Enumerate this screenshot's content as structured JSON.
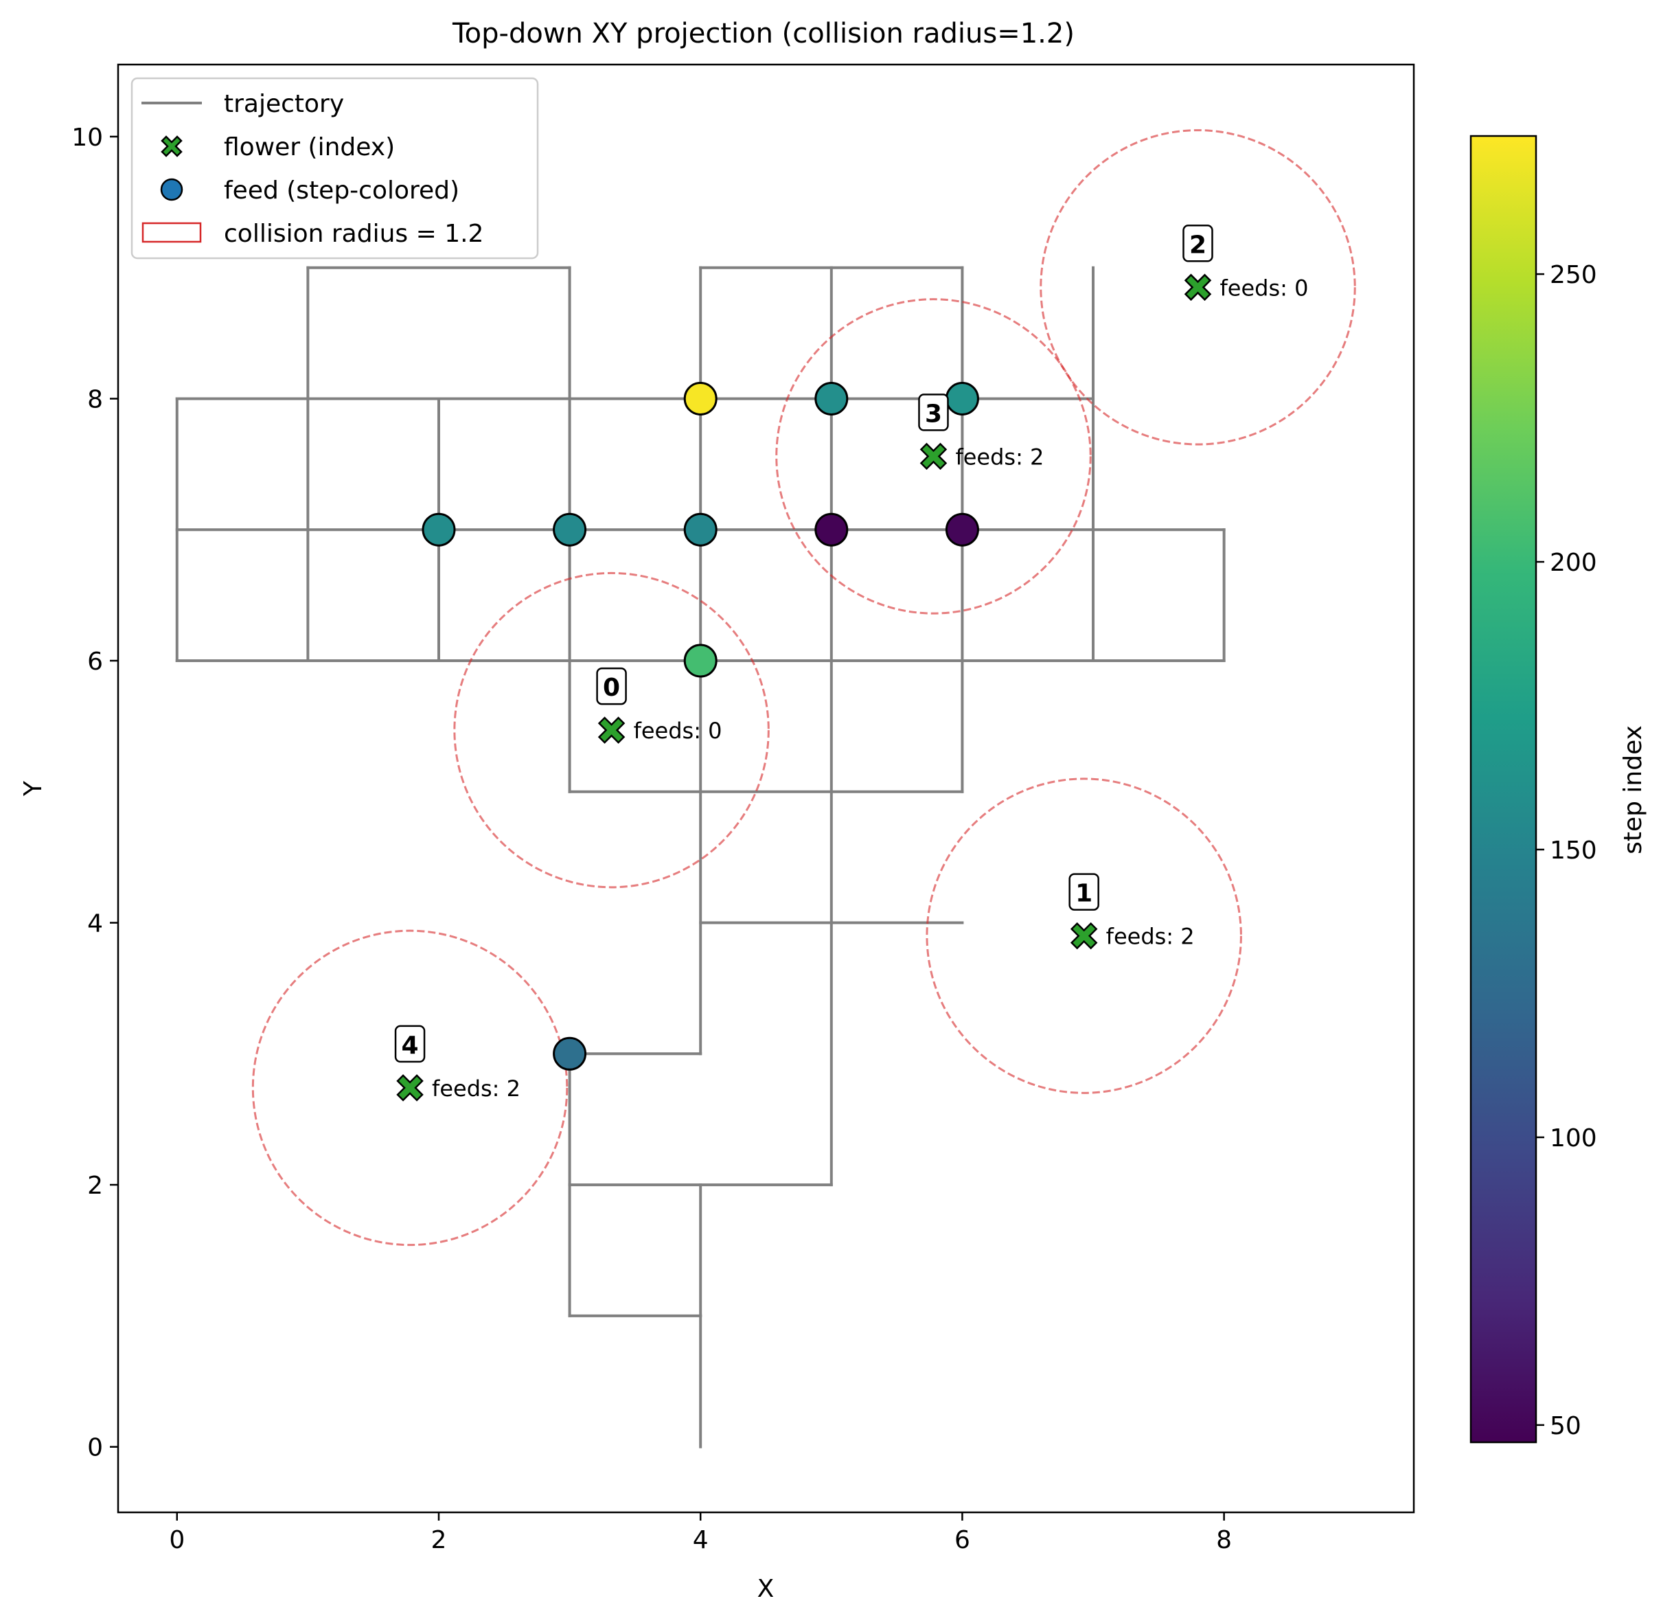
{
  "chart_data": {
    "type": "scatter",
    "title": "Top-down XY projection (collision radius=1.2)",
    "xlabel": "X",
    "ylabel": "Y",
    "xlim": [
      -0.45,
      9.45
    ],
    "ylim": [
      -0.5,
      10.55
    ],
    "x_ticks": [
      0,
      2,
      4,
      6,
      8
    ],
    "y_ticks": [
      0,
      2,
      4,
      6,
      8,
      10
    ],
    "grid": false,
    "legend_position": "top-left",
    "legend": [
      {
        "key": "trajectory",
        "label": "trajectory"
      },
      {
        "key": "flower",
        "label": "flower (index)"
      },
      {
        "key": "feed",
        "label": "feed (step-colored)"
      },
      {
        "key": "radius",
        "label": "collision radius = 1.2"
      }
    ],
    "collision_radius": 1.2,
    "colors": {
      "trajectory": "#808080",
      "flower": "#2ca02c",
      "feed_legend": "#1f77b4",
      "radius": "#d62728",
      "colormap": [
        "#440154",
        "#482878",
        "#3e4989",
        "#31688e",
        "#26828e",
        "#1f9e89",
        "#35b779",
        "#6ece58",
        "#b5de2b",
        "#fde725"
      ]
    },
    "trajectory_segments": [
      [
        [
          4,
          0
        ],
        [
          4,
          1
        ]
      ],
      [
        [
          3,
          1
        ],
        [
          4,
          1
        ]
      ],
      [
        [
          3,
          1
        ],
        [
          3,
          2
        ]
      ],
      [
        [
          3,
          2
        ],
        [
          5,
          2
        ]
      ],
      [
        [
          4,
          1
        ],
        [
          4,
          2
        ]
      ],
      [
        [
          5,
          2
        ],
        [
          5,
          9
        ]
      ],
      [
        [
          3,
          2
        ],
        [
          3,
          3
        ]
      ],
      [
        [
          3,
          3
        ],
        [
          4,
          3
        ]
      ],
      [
        [
          4,
          3
        ],
        [
          4,
          9
        ]
      ],
      [
        [
          4,
          4
        ],
        [
          6,
          4
        ]
      ],
      [
        [
          3,
          5
        ],
        [
          6,
          5
        ]
      ],
      [
        [
          3,
          5
        ],
        [
          3,
          9
        ]
      ],
      [
        [
          6,
          5
        ],
        [
          6,
          9
        ]
      ],
      [
        [
          1,
          9
        ],
        [
          3,
          9
        ]
      ],
      [
        [
          1,
          6
        ],
        [
          1,
          9
        ]
      ],
      [
        [
          2,
          6
        ],
        [
          2,
          8
        ]
      ],
      [
        [
          4,
          9
        ],
        [
          6,
          9
        ]
      ],
      [
        [
          0,
          6
        ],
        [
          8,
          6
        ]
      ],
      [
        [
          0,
          6
        ],
        [
          0,
          8
        ]
      ],
      [
        [
          0,
          7
        ],
        [
          8,
          7
        ]
      ],
      [
        [
          8,
          6
        ],
        [
          8,
          7
        ]
      ],
      [
        [
          0,
          8
        ],
        [
          7,
          8
        ]
      ],
      [
        [
          7,
          6
        ],
        [
          7,
          9
        ]
      ]
    ],
    "flowers": [
      {
        "index": "0",
        "x": 3.32,
        "y": 5.47,
        "feeds_label": "feeds: 0"
      },
      {
        "index": "1",
        "x": 6.93,
        "y": 3.9,
        "feeds_label": "feeds: 2"
      },
      {
        "index": "2",
        "x": 7.8,
        "y": 8.85,
        "feeds_label": "feeds: 0"
      },
      {
        "index": "3",
        "x": 5.78,
        "y": 7.56,
        "feeds_label": "feeds: 2"
      },
      {
        "index": "4",
        "x": 1.78,
        "y": 2.74,
        "feeds_label": "feeds: 2"
      }
    ],
    "feeds": [
      {
        "x": 2,
        "y": 7,
        "step": 158
      },
      {
        "x": 3,
        "y": 7,
        "step": 155
      },
      {
        "x": 4,
        "y": 7,
        "step": 152
      },
      {
        "x": 5,
        "y": 7,
        "step": 48
      },
      {
        "x": 6,
        "y": 7,
        "step": 50
      },
      {
        "x": 4,
        "y": 8,
        "step": 272
      },
      {
        "x": 5,
        "y": 8,
        "step": 160
      },
      {
        "x": 6,
        "y": 8,
        "step": 163
      },
      {
        "x": 4,
        "y": 6,
        "step": 205
      },
      {
        "x": 3,
        "y": 3,
        "step": 130
      }
    ],
    "colorbar": {
      "label": "step index",
      "min": 47,
      "max": 274,
      "ticks": [
        50,
        100,
        150,
        200,
        250
      ]
    }
  }
}
